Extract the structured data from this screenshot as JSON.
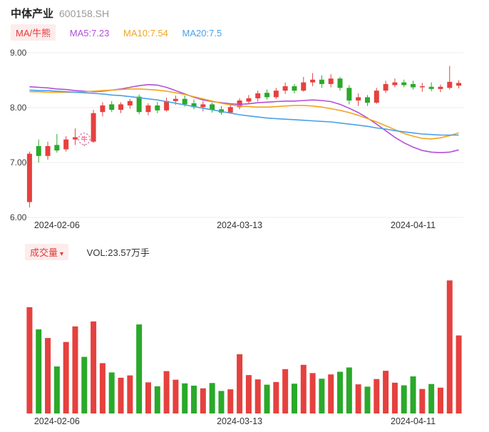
{
  "header": {
    "title": "中体产业",
    "code": "600158.SH"
  },
  "legend": {
    "tag": "MA/牛熊",
    "items": [
      {
        "label": "MA5:7.23",
        "color": "#b24fd8"
      },
      {
        "label": "MA10:7.54",
        "color": "#f2a51f"
      },
      {
        "label": "MA20:7.5",
        "color": "#4aa0e8"
      }
    ]
  },
  "volume_header": {
    "tag": "成交量",
    "caret": "▾",
    "vol_label": "VOL:23.57万手"
  },
  "ui": {
    "accent_red": "#e23b3b",
    "tag_bg": "#fdecec"
  },
  "chart_data": {
    "type": "candlestick",
    "title": "中体产业 600158.SH 日K",
    "ylim": [
      6.0,
      9.0
    ],
    "y_ticks": [
      9.0,
      8.0,
      7.0,
      6.0
    ],
    "y_tick_labels": [
      "9.00",
      "8.00",
      "7.00",
      "6.00"
    ],
    "x_ticks": [
      {
        "index": 3,
        "label": "2024-02-06"
      },
      {
        "index": 23,
        "label": "2024-03-13"
      },
      {
        "index": 42,
        "label": "2024-04-11"
      }
    ],
    "volume_axis_max": 42,
    "volume_unit": "万手",
    "latest_volume": 23.57,
    "colors": {
      "up": "#e5413e",
      "down": "#2aa92a",
      "grid": "#ececec",
      "axis_text": "#3c3c3c"
    },
    "marker": {
      "glyph": "牛",
      "index": 6,
      "price": 7.43,
      "color": "#ee6f9e"
    },
    "dates": [
      "2024-02-01",
      "2024-02-02",
      "2024-02-05",
      "2024-02-06",
      "2024-02-07",
      "2024-02-08",
      "2024-02-19",
      "2024-02-20",
      "2024-02-21",
      "2024-02-22",
      "2024-02-23",
      "2024-02-26",
      "2024-02-27",
      "2024-02-28",
      "2024-02-29",
      "2024-03-01",
      "2024-03-04",
      "2024-03-05",
      "2024-03-06",
      "2024-03-07",
      "2024-03-08",
      "2024-03-11",
      "2024-03-12",
      "2024-03-13",
      "2024-03-14",
      "2024-03-15",
      "2024-03-18",
      "2024-03-19",
      "2024-03-20",
      "2024-03-21",
      "2024-03-22",
      "2024-03-25",
      "2024-03-26",
      "2024-03-27",
      "2024-03-28",
      "2024-03-29",
      "2024-04-01",
      "2024-04-02",
      "2024-04-03",
      "2024-04-08",
      "2024-04-09",
      "2024-04-10",
      "2024-04-11",
      "2024-04-12",
      "2024-04-15",
      "2024-04-16",
      "2024-04-17",
      "2024-04-18"
    ],
    "ohlc": [
      [
        6.28,
        7.2,
        6.18,
        7.16
      ],
      [
        7.3,
        7.42,
        7.0,
        7.12
      ],
      [
        7.12,
        7.38,
        7.05,
        7.3
      ],
      [
        7.32,
        7.52,
        7.18,
        7.22
      ],
      [
        7.24,
        7.48,
        7.2,
        7.42
      ],
      [
        7.42,
        7.62,
        7.32,
        7.46
      ],
      [
        7.48,
        7.54,
        7.3,
        7.36
      ],
      [
        7.38,
        7.96,
        7.36,
        7.9
      ],
      [
        7.92,
        8.1,
        7.84,
        8.04
      ],
      [
        8.06,
        8.12,
        7.92,
        7.96
      ],
      [
        7.96,
        8.1,
        7.9,
        8.06
      ],
      [
        8.04,
        8.16,
        7.98,
        8.12
      ],
      [
        8.2,
        8.24,
        7.88,
        7.92
      ],
      [
        7.92,
        8.08,
        7.86,
        8.04
      ],
      [
        8.04,
        8.1,
        7.9,
        7.95
      ],
      [
        7.95,
        8.18,
        7.93,
        8.12
      ],
      [
        8.12,
        8.22,
        8.05,
        8.16
      ],
      [
        8.16,
        8.22,
        8.02,
        8.06
      ],
      [
        8.08,
        8.15,
        7.97,
        8.01
      ],
      [
        8.01,
        8.12,
        7.93,
        8.06
      ],
      [
        8.06,
        8.09,
        7.91,
        7.96
      ],
      [
        7.97,
        8.03,
        7.87,
        7.91
      ],
      [
        7.91,
        8.06,
        7.89,
        8.01
      ],
      [
        8.01,
        8.17,
        7.97,
        8.13
      ],
      [
        8.11,
        8.23,
        8.07,
        8.17
      ],
      [
        8.17,
        8.31,
        8.11,
        8.26
      ],
      [
        8.27,
        8.33,
        8.15,
        8.19
      ],
      [
        8.19,
        8.36,
        8.16,
        8.31
      ],
      [
        8.31,
        8.46,
        8.25,
        8.39
      ],
      [
        8.39,
        8.43,
        8.26,
        8.31
      ],
      [
        8.31,
        8.56,
        8.29,
        8.46
      ],
      [
        8.46,
        8.63,
        8.39,
        8.51
      ],
      [
        8.51,
        8.59,
        8.36,
        8.43
      ],
      [
        8.43,
        8.61,
        8.37,
        8.53
      ],
      [
        8.53,
        8.56,
        8.31,
        8.36
      ],
      [
        8.36,
        8.41,
        8.06,
        8.13
      ],
      [
        8.13,
        8.26,
        8.03,
        8.19
      ],
      [
        8.19,
        8.23,
        8.03,
        8.09
      ],
      [
        8.09,
        8.36,
        8.07,
        8.31
      ],
      [
        8.31,
        8.49,
        8.27,
        8.43
      ],
      [
        8.41,
        8.53,
        8.37,
        8.46
      ],
      [
        8.46,
        8.51,
        8.37,
        8.41
      ],
      [
        8.43,
        8.49,
        8.33,
        8.37
      ],
      [
        8.37,
        8.45,
        8.29,
        8.39
      ],
      [
        8.38,
        8.46,
        8.3,
        8.34
      ],
      [
        8.34,
        8.42,
        8.28,
        8.38
      ],
      [
        8.36,
        8.76,
        8.33,
        8.47
      ],
      [
        8.4,
        8.5,
        8.35,
        8.45
      ]
    ],
    "volumes": [
      32.1,
      25.4,
      22.8,
      14.2,
      21.6,
      26.3,
      17.1,
      27.8,
      15.2,
      12.4,
      10.8,
      11.5,
      26.9,
      9.4,
      8.2,
      12.8,
      10.2,
      9.1,
      8.4,
      7.6,
      9.2,
      6.8,
      7.3,
      17.9,
      11.6,
      10.3,
      8.7,
      9.5,
      13.4,
      9.0,
      14.7,
      12.2,
      10.5,
      11.8,
      12.6,
      13.9,
      8.8,
      8.1,
      10.4,
      12.9,
      9.3,
      8.5,
      11.2,
      7.4,
      8.9,
      7.8,
      40.2,
      23.57
    ],
    "ma_series": [
      {
        "name": "MA5",
        "display": "MA5:7.23",
        "color": "#b24fd8",
        "values": [
          8.38,
          8.37,
          8.36,
          8.34,
          8.33,
          8.31,
          8.3,
          8.29,
          8.3,
          8.32,
          8.34,
          8.37,
          8.4,
          8.42,
          8.41,
          8.37,
          8.31,
          8.25,
          8.19,
          8.14,
          8.11,
          8.09,
          8.07,
          8.06,
          8.07,
          8.09,
          8.1,
          8.11,
          8.12,
          8.12,
          8.13,
          8.14,
          8.13,
          8.11,
          8.06,
          7.99,
          7.91,
          7.81,
          7.7,
          7.58,
          7.46,
          7.36,
          7.28,
          7.22,
          7.19,
          7.18,
          7.19,
          7.23
        ]
      },
      {
        "name": "MA10",
        "display": "MA10:7.54",
        "color": "#f2a51f",
        "values": [
          8.29,
          8.29,
          8.28,
          8.28,
          8.28,
          8.28,
          8.29,
          8.3,
          8.31,
          8.32,
          8.33,
          8.34,
          8.34,
          8.33,
          8.32,
          8.3,
          8.27,
          8.24,
          8.2,
          8.16,
          8.12,
          8.08,
          8.05,
          8.03,
          8.02,
          8.01,
          8.01,
          8.02,
          8.03,
          8.04,
          8.04,
          8.03,
          8.01,
          7.98,
          7.95,
          7.91,
          7.86,
          7.8,
          7.74,
          7.67,
          7.6,
          7.53,
          7.48,
          7.44,
          7.43,
          7.45,
          7.49,
          7.54
        ]
      },
      {
        "name": "MA20",
        "display": "MA20:7.5",
        "color": "#4aa0e8",
        "values": [
          8.32,
          8.31,
          8.31,
          8.3,
          8.29,
          8.28,
          8.27,
          8.26,
          8.25,
          8.23,
          8.22,
          8.2,
          8.18,
          8.16,
          8.14,
          8.11,
          8.08,
          8.05,
          8.02,
          7.99,
          7.96,
          7.93,
          7.9,
          7.87,
          7.85,
          7.83,
          7.81,
          7.8,
          7.79,
          7.78,
          7.77,
          7.76,
          7.75,
          7.74,
          7.72,
          7.7,
          7.68,
          7.66,
          7.63,
          7.61,
          7.58,
          7.56,
          7.54,
          7.52,
          7.51,
          7.5,
          7.5,
          7.5
        ]
      }
    ]
  }
}
